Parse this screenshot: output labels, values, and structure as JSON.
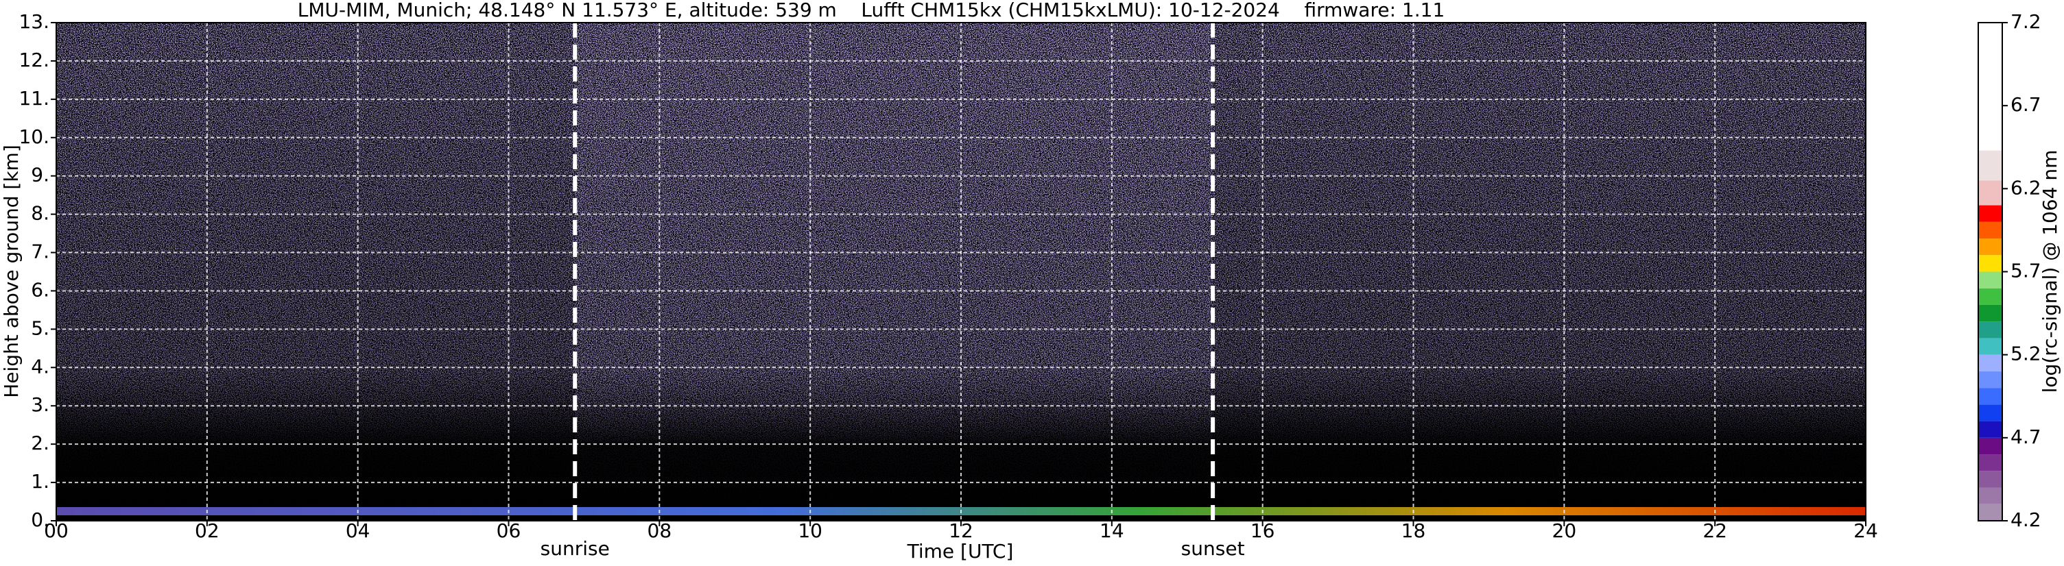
{
  "chart_data": {
    "type": "heatmap",
    "title": "LMU-MIM, Munich; 48.148° N 11.573° E, altitude: 539 m    Lufft CHM15kx (CHM15kxLMU): 10-12-2024    firmware: 1.11",
    "x_label": "Time [UTC]",
    "y_label": "Height above ground [km]",
    "xlim": [
      0,
      24
    ],
    "xticks": [
      {
        "value": 0,
        "label": "00"
      },
      {
        "value": 2,
        "label": "02"
      },
      {
        "value": 4,
        "label": "04"
      },
      {
        "value": 6,
        "label": "06"
      },
      {
        "value": 8,
        "label": "08"
      },
      {
        "value": 10,
        "label": "10"
      },
      {
        "value": 12,
        "label": "12"
      },
      {
        "value": 14,
        "label": "14"
      },
      {
        "value": 16,
        "label": "16"
      },
      {
        "value": 18,
        "label": "18"
      },
      {
        "value": 20,
        "label": "20"
      },
      {
        "value": 22,
        "label": "22"
      },
      {
        "value": 24,
        "label": "24"
      }
    ],
    "ylim": [
      0,
      13
    ],
    "yticks": [
      {
        "value": 0,
        "label": "0."
      },
      {
        "value": 1,
        "label": "1."
      },
      {
        "value": 2,
        "label": "2."
      },
      {
        "value": 3,
        "label": "3."
      },
      {
        "value": 4,
        "label": "4."
      },
      {
        "value": 5,
        "label": "5."
      },
      {
        "value": 6,
        "label": "6."
      },
      {
        "value": 7,
        "label": "7."
      },
      {
        "value": 8,
        "label": "8."
      },
      {
        "value": 9,
        "label": "9."
      },
      {
        "value": 10,
        "label": "10."
      },
      {
        "value": 11,
        "label": "11."
      },
      {
        "value": 12,
        "label": "12."
      },
      {
        "value": 13,
        "label": "13."
      }
    ],
    "grid": true,
    "annotations": [
      {
        "text": "sunrise",
        "x": 6.88
      },
      {
        "text": "sunset",
        "x": 15.34
      }
    ],
    "colorbar": {
      "label": "log(rc-signal) @ 1064 nm",
      "clim": [
        4.2,
        7.2
      ],
      "ticks": [
        4.2,
        4.7,
        5.2,
        5.7,
        6.2,
        6.7,
        7.2
      ],
      "bounds": [
        4.2,
        4.3,
        4.4,
        4.5,
        4.6,
        4.7,
        4.8,
        4.9,
        5.0,
        5.1,
        5.2,
        5.3,
        5.4,
        5.5,
        5.6,
        5.7,
        5.8,
        5.9,
        6.0,
        6.1,
        6.25,
        6.43,
        7.2
      ],
      "colors": [
        "#a890b0",
        "#9c78a8",
        "#8c5a9c",
        "#7c3090",
        "#6c0c84",
        "#1a10c0",
        "#1040f0",
        "#3a6cff",
        "#6c90ff",
        "#9cb0ff",
        "#40c0c0",
        "#20a088",
        "#109830",
        "#40c040",
        "#90e080",
        "#ffe000",
        "#ffa000",
        "#ff5a00",
        "#ff0000",
        "#f0c0c0",
        "#ece0e0",
        "#ffffff"
      ]
    }
  }
}
